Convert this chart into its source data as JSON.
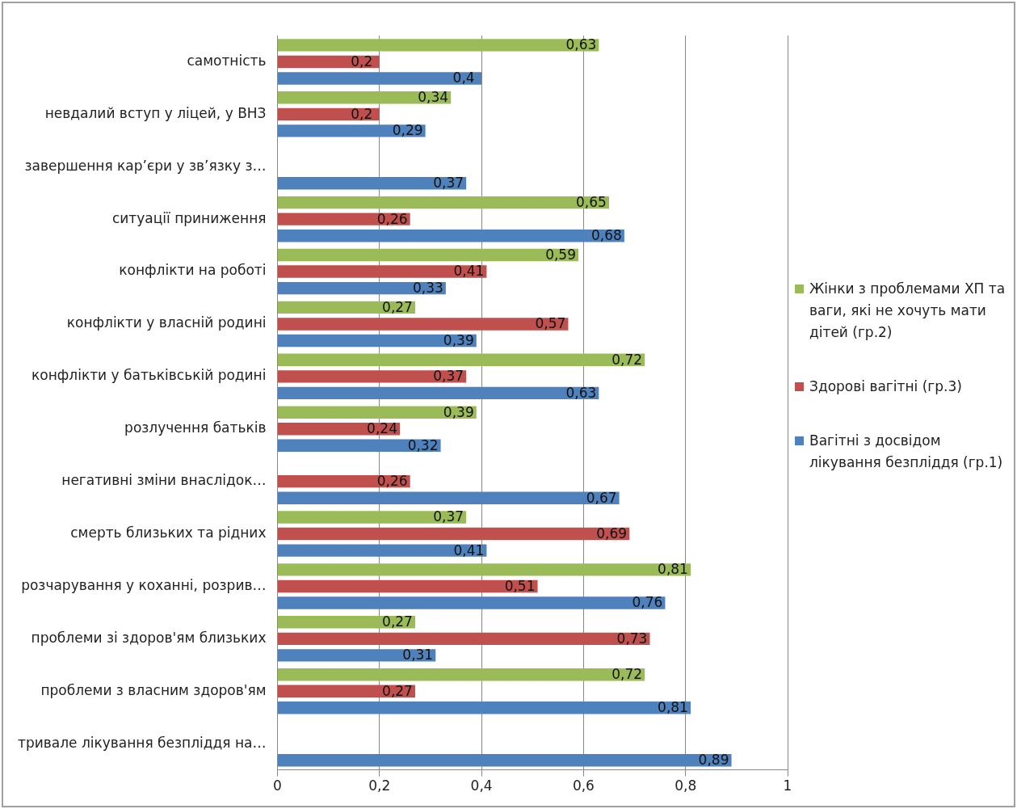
{
  "chart_data": {
    "type": "bar",
    "orientation": "horizontal",
    "categories": [
      "самотність",
      "невдалий вступ у ліцей, у ВНЗ",
      "завершення кар’єри у зв’язку з…",
      "ситуації приниження",
      "конфлікти на роботі",
      "конфлікти у власній родині",
      "конфлікти у батьківській родині",
      "розлучення батьків",
      "негативні зміни внаслідок…",
      "смерть близьких та рідних",
      "розчарування у коханні, розрив…",
      "проблеми зі здоров'ям близьких",
      "проблеми з власним здоров'ям",
      "тривале лікування безпліддя на…"
    ],
    "series": [
      {
        "name": "Жінки з проблемами ХП та ваги, які не хочуть мати дітей (гр.2)",
        "color": "#9bbb59",
        "values": [
          0.63,
          0.34,
          null,
          0.65,
          0.59,
          0.27,
          0.72,
          0.39,
          null,
          0.37,
          0.81,
          0.27,
          0.72,
          null
        ],
        "value_labels": [
          "0,63",
          "0,34",
          null,
          "0,65",
          "0,59",
          "0,27",
          "0,72",
          "0,39",
          null,
          "0,37",
          "0,81",
          "0,27",
          "0,72",
          null
        ]
      },
      {
        "name": "Здорові вагітні (гр.3)",
        "color": "#c0504d",
        "values": [
          0.2,
          0.2,
          null,
          0.26,
          0.41,
          0.57,
          0.37,
          0.24,
          0.26,
          0.69,
          0.51,
          0.73,
          0.27,
          null
        ],
        "value_labels": [
          "0,2",
          "0,2",
          null,
          "0,26",
          "0,41",
          "0,57",
          "0,37",
          "0,24",
          "0,26",
          "0,69",
          "0,51",
          "0,73",
          "0,27",
          null
        ]
      },
      {
        "name": "Вагітні з досвідом лікування безпліддя (гр.1)",
        "color": "#4f81bd",
        "values": [
          0.4,
          0.29,
          0.37,
          0.68,
          0.33,
          0.39,
          0.63,
          0.32,
          0.67,
          0.41,
          0.76,
          0.31,
          0.81,
          0.89
        ],
        "value_labels": [
          "0,4",
          "0,29",
          "0,37",
          "0,68",
          "0,33",
          "0,39",
          "0,63",
          "0,32",
          "0,67",
          "0,41",
          "0,76",
          "0,31",
          "0,81",
          "0,89"
        ]
      }
    ],
    "xlim": [
      0,
      1
    ],
    "xticks": [
      {
        "value": 0,
        "label": "0"
      },
      {
        "value": 0.2,
        "label": "0,2"
      },
      {
        "value": 0.4,
        "label": "0,4"
      },
      {
        "value": 0.6,
        "label": "0,6"
      },
      {
        "value": 0.8,
        "label": "0,8"
      },
      {
        "value": 1,
        "label": "1"
      }
    ],
    "grid": "x",
    "legend": "right"
  }
}
